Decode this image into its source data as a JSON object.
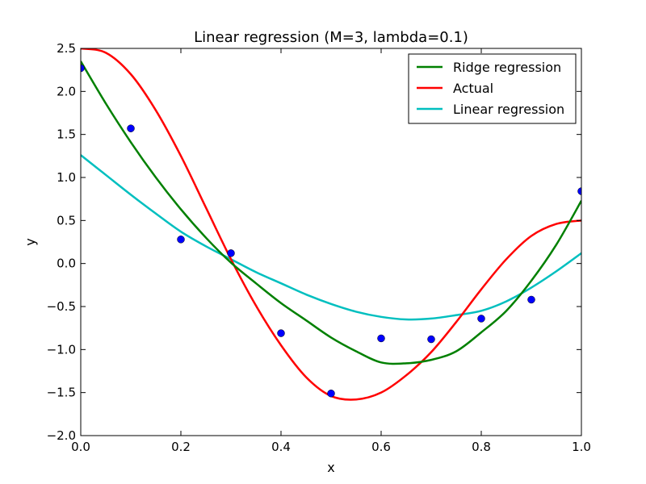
{
  "chart_data": {
    "type": "line",
    "title": "Linear regression (M=3, lambda=0.1)",
    "xlabel": "x",
    "ylabel": "y",
    "xlim": [
      0.0,
      1.0
    ],
    "ylim": [
      -2.0,
      2.5
    ],
    "xticks": [
      "0.0",
      "0.2",
      "0.4",
      "0.6",
      "0.8",
      "1.0"
    ],
    "yticks": [
      "2.5",
      "2.0",
      "1.5",
      "1.0",
      "0.5",
      "0.0",
      "−0.5",
      "−1.0",
      "−1.5",
      "−2.0"
    ],
    "grid": false,
    "legend_position": "top-right",
    "series": [
      {
        "name": "Ridge regression",
        "color": "#008000",
        "x": [
          0.0,
          0.05,
          0.1,
          0.15,
          0.2,
          0.25,
          0.3,
          0.35,
          0.4,
          0.45,
          0.5,
          0.55,
          0.6,
          0.65,
          0.7,
          0.75,
          0.8,
          0.85,
          0.9,
          0.95,
          1.0
        ],
        "y": [
          2.35,
          1.86,
          1.41,
          1.0,
          0.63,
          0.3,
          0.01,
          -0.23,
          -0.46,
          -0.66,
          -0.86,
          -1.02,
          -1.15,
          -1.16,
          -1.12,
          -1.02,
          -0.8,
          -0.55,
          -0.2,
          0.22,
          0.73
        ]
      },
      {
        "name": "Actual",
        "color": "#ff0000",
        "x": [
          0.0,
          0.05,
          0.1,
          0.15,
          0.2,
          0.25,
          0.3,
          0.35,
          0.4,
          0.45,
          0.5,
          0.55,
          0.6,
          0.65,
          0.7,
          0.75,
          0.8,
          0.85,
          0.9,
          0.95,
          1.0
        ],
        "y": [
          2.5,
          2.45,
          2.2,
          1.78,
          1.25,
          0.65,
          0.05,
          -0.49,
          -0.95,
          -1.32,
          -1.54,
          -1.58,
          -1.5,
          -1.3,
          -1.03,
          -0.68,
          -0.3,
          0.05,
          0.32,
          0.46,
          0.5
        ]
      },
      {
        "name": "Linear regression",
        "color": "#00bfbf",
        "x": [
          0.0,
          0.05,
          0.1,
          0.15,
          0.2,
          0.25,
          0.3,
          0.35,
          0.4,
          0.45,
          0.5,
          0.55,
          0.6,
          0.65,
          0.7,
          0.75,
          0.8,
          0.85,
          0.9,
          0.95,
          1.0
        ],
        "y": [
          1.26,
          1.03,
          0.8,
          0.58,
          0.37,
          0.2,
          0.05,
          -0.1,
          -0.23,
          -0.36,
          -0.47,
          -0.56,
          -0.62,
          -0.65,
          -0.64,
          -0.6,
          -0.55,
          -0.44,
          -0.28,
          -0.09,
          0.12
        ]
      }
    ],
    "points": {
      "color": "#0000ff",
      "x": [
        0.0,
        0.1,
        0.2,
        0.3,
        0.4,
        0.5,
        0.6,
        0.7,
        0.8,
        0.9,
        1.0
      ],
      "y": [
        2.27,
        1.57,
        0.28,
        0.12,
        -0.81,
        -1.51,
        -0.87,
        -0.88,
        -0.64,
        -0.42,
        0.84
      ]
    }
  }
}
